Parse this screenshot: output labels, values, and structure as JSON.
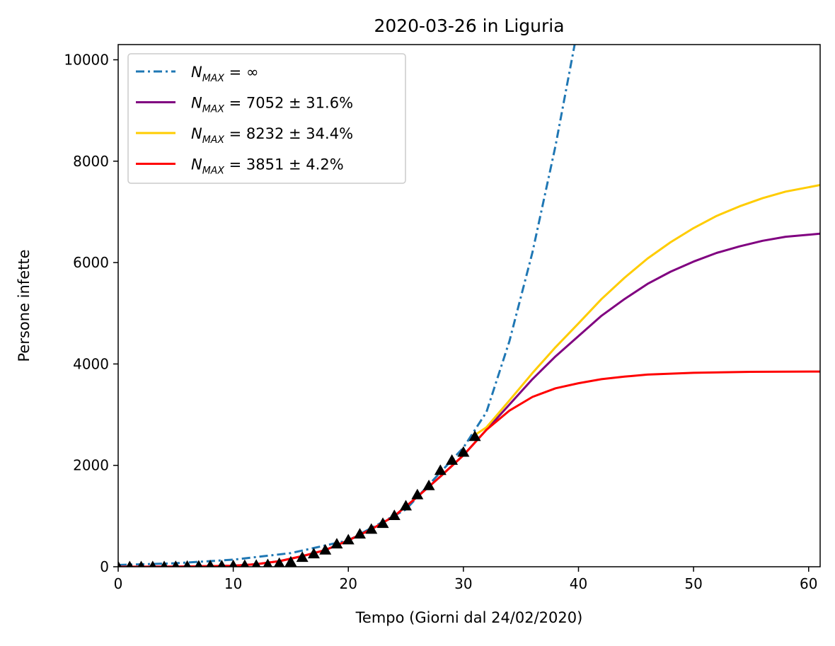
{
  "chart_data": {
    "type": "line",
    "title": "2020-03-26 in Liguria",
    "xlabel": "Tempo (Giorni dal 24/02/2020)",
    "ylabel": "Persone infette",
    "xlim": [
      0,
      61
    ],
    "ylim": [
      0,
      10300
    ],
    "x_ticks": [
      0,
      10,
      20,
      30,
      40,
      50,
      60
    ],
    "y_ticks": [
      0,
      2000,
      4000,
      6000,
      8000,
      10000
    ],
    "grid": false,
    "legend_position": "top-left",
    "series": [
      {
        "name": "N_MAX = ∞",
        "legend_main": "N",
        "legend_sub": "MAX",
        "legend_rest": " = ∞",
        "color": "#1f77b4",
        "style": "dash-dot",
        "x": [
          0,
          5,
          10,
          15,
          20,
          25,
          30,
          32,
          34,
          36,
          38,
          40
        ],
        "y": [
          35,
          70,
          140,
          270,
          520,
          1130,
          2350,
          3050,
          4450,
          6200,
          8300,
          10700
        ]
      },
      {
        "name": "N_MAX = 7052 ± 31.6%",
        "legend_main": "N",
        "legend_sub": "MAX",
        "legend_rest": " = 7052 ± 31.6%",
        "color": "#800080",
        "style": "solid",
        "x": [
          0,
          5,
          10,
          12,
          14,
          16,
          18,
          20,
          22,
          24,
          26,
          28,
          30,
          32,
          34,
          36,
          38,
          40,
          42,
          44,
          46,
          48,
          50,
          52,
          54,
          56,
          58,
          61
        ],
        "y": [
          0,
          3,
          20,
          50,
          110,
          210,
          330,
          520,
          740,
          1000,
          1380,
          1780,
          2200,
          2700,
          3200,
          3700,
          4150,
          4550,
          4950,
          5280,
          5580,
          5820,
          6020,
          6190,
          6320,
          6430,
          6510,
          6570
        ]
      },
      {
        "name": "N_MAX = 8232 ± 34.4%",
        "legend_main": "N",
        "legend_sub": "MAX",
        "legend_rest": " = 8232 ± 34.4%",
        "color": "#ffcc00",
        "style": "solid",
        "x": [
          31,
          32,
          34,
          36,
          38,
          40,
          42,
          44,
          46,
          48,
          50,
          52,
          54,
          56,
          58,
          61
        ],
        "y": [
          2600,
          2750,
          3280,
          3820,
          4330,
          4800,
          5280,
          5700,
          6080,
          6400,
          6680,
          6920,
          7110,
          7270,
          7400,
          7530
        ]
      },
      {
        "name": "N_MAX = 3851 ± 4.2%",
        "legend_main": "N",
        "legend_sub": "MAX",
        "legend_rest": " = 3851 ± 4.2%",
        "color": "#ff0000",
        "style": "solid",
        "x": [
          0,
          5,
          10,
          12,
          14,
          16,
          18,
          20,
          22,
          24,
          26,
          28,
          30,
          32,
          34,
          36,
          38,
          40,
          42,
          44,
          46,
          50,
          55,
          61
        ],
        "y": [
          0,
          3,
          20,
          50,
          110,
          210,
          330,
          520,
          740,
          1000,
          1380,
          1780,
          2200,
          2700,
          3080,
          3350,
          3520,
          3620,
          3700,
          3750,
          3790,
          3825,
          3845,
          3850
        ]
      }
    ],
    "observed": {
      "marker": "triangle",
      "color": "#000000",
      "x": [
        0,
        1,
        2,
        3,
        4,
        5,
        6,
        7,
        8,
        9,
        10,
        11,
        12,
        13,
        14,
        15,
        16,
        17,
        18,
        19,
        20,
        21,
        22,
        23,
        24,
        25,
        26,
        27,
        28,
        29,
        30,
        31
      ],
      "y": [
        0,
        0,
        0,
        1,
        2,
        6,
        10,
        14,
        19,
        19,
        22,
        26,
        30,
        42,
        67,
        95,
        185,
        255,
        330,
        450,
        530,
        645,
        740,
        855,
        1010,
        1200,
        1420,
        1600,
        1900,
        2100,
        2260,
        2570
      ]
    }
  }
}
